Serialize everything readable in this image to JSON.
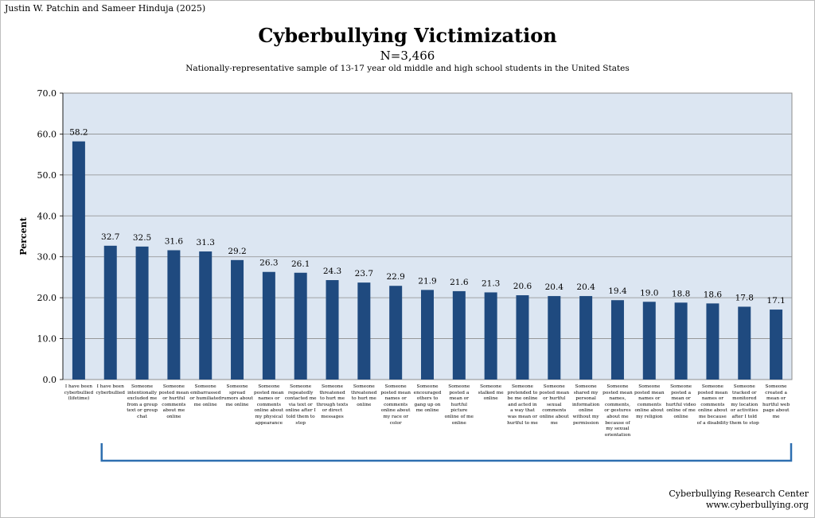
{
  "author": "Justin W. Patchin and Sameer Hinduja (2025)",
  "footer": {
    "org": "Cyberbullying Research Center",
    "url": "www.cyberbullying.org"
  },
  "colors": {
    "bar": "#1f4a7f",
    "plot_bg": "#dce6f2",
    "bracket": "#2e6fb0"
  },
  "chart_data": {
    "type": "bar",
    "title": "Cyberbullying Victimization",
    "n_label": "N=3,466",
    "subtitle": "Nationally-representative sample of 13-17 year old middle and high school students in the United States",
    "xlabel": "",
    "ylabel": "Percent",
    "ylim": [
      0,
      70
    ],
    "yticks": [
      "0.0",
      "10.0",
      "20.0",
      "30.0",
      "40.0",
      "50.0",
      "60.0",
      "70.0"
    ],
    "grid": true,
    "categories": [
      "I have been cyberbullied (lifetime)",
      "I have been cyberbullied",
      "Someone intentionally excluded me from a group text or group chat",
      "Someone posted mean or hurtful comments about me online",
      "Someone embarrassed or humiliated me online",
      "Someone spread rumors about me online",
      "Someone posted mean names or comments online about my physical appearance",
      "Someone repeatedly contacted me via text or online after I told them to stop",
      "Someone threatened to hurt me through texts or direct messages",
      "Someone threatened to hurt me online",
      "Someone posted mean names or comments online about my race or color",
      "Someone encouraged others to gang up on me online",
      "Someone posted a mean or hurtful picture online of me online",
      "Someone stalked me online",
      "Someone pretended to be me online and acted in a way that was mean or hurtful to me",
      "Someone posted mean or hurtful sexual comments online about me",
      "Someone shared my personal information online without my permission",
      "Someone posted mean names, comments, or gestures about me because of my sexual orientation",
      "Someone posted mean names or comments online about my religion",
      "Someone posted a mean or hurtful video online of me online",
      "Someone posted mean names or comments online about me because of a disability",
      "Someone tracked or monitored my location or activities after I told them to stop",
      "Someone created a mean or hurtful web page about me"
    ],
    "values": [
      58.2,
      32.7,
      32.5,
      31.6,
      31.3,
      29.2,
      26.3,
      26.1,
      24.3,
      23.7,
      22.9,
      21.9,
      21.6,
      21.3,
      20.6,
      20.4,
      20.4,
      19.4,
      19.0,
      18.8,
      18.6,
      17.8,
      17.1
    ],
    "value_labels": [
      "58.2",
      "32.7",
      "32.5",
      "31.6",
      "31.3",
      "29.2",
      "26.3",
      "26.1",
      "24.3",
      "23.7",
      "22.9",
      "21.9",
      "21.6",
      "21.3",
      "20.6",
      "20.4",
      "20.4",
      "19.4",
      "19.0",
      "18.8",
      "18.6",
      "17.8",
      "17.1"
    ]
  }
}
